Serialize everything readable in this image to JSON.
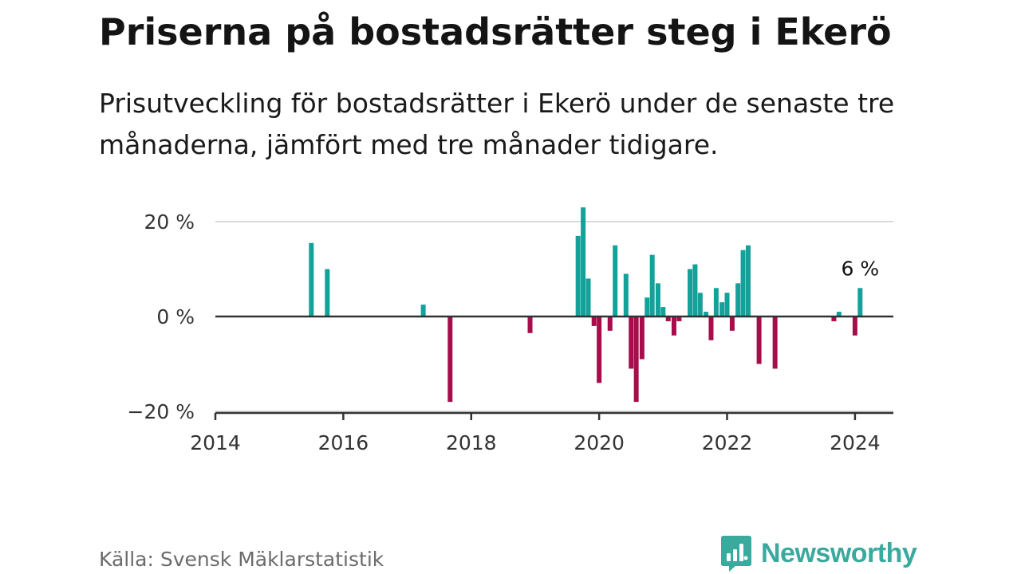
{
  "title": "Priserna på bostadsrätter steg i Ekerö",
  "subtitle": "Prisutveckling för bostadsrätter i Ekerö under de senaste tre månaderna, jämfört med tre månader tidigare.",
  "source": "Källa: Svensk Mäklarstatistik",
  "brand": "Newsworthy",
  "colors": {
    "positive": "#13a19a",
    "negative": "#a50e4b",
    "grid": "#d9d9d9",
    "axis": "#333333",
    "brand": "#3aa99e"
  },
  "chart_data": {
    "type": "bar",
    "title": "Priserna på bostadsrätter steg i Ekerö",
    "ylim": [
      -20,
      25
    ],
    "xlim": [
      2014,
      2024.6
    ],
    "yticks": [
      20,
      0,
      -20
    ],
    "ytick_labels": [
      "20 %",
      "0 %",
      "−20 %"
    ],
    "xticks": [
      2014,
      2016,
      2018,
      2020,
      2022,
      2024
    ],
    "xtick_labels": [
      "2014",
      "2016",
      "2018",
      "2020",
      "2022",
      "2024"
    ],
    "annotation": {
      "label": "6 %",
      "x": 2024.08,
      "y": 6
    },
    "x": [
      2015.5,
      2015.75,
      2017.25,
      2017.67,
      2018.92,
      2019.67,
      2019.75,
      2019.83,
      2019.92,
      2020.0,
      2020.17,
      2020.25,
      2020.42,
      2020.5,
      2020.58,
      2020.67,
      2020.75,
      2020.83,
      2020.92,
      2021.0,
      2021.08,
      2021.17,
      2021.25,
      2021.42,
      2021.5,
      2021.58,
      2021.67,
      2021.75,
      2021.83,
      2021.92,
      2022.0,
      2022.08,
      2022.17,
      2022.25,
      2022.33,
      2022.5,
      2022.75,
      2023.67,
      2023.75,
      2024.0,
      2024.08
    ],
    "values": [
      15.5,
      10,
      2.5,
      -18,
      -3.5,
      17,
      23,
      8,
      -2,
      -14,
      -3,
      15,
      9,
      -11,
      -18,
      -9,
      4,
      13,
      7,
      2,
      -1,
      -4,
      -1,
      10,
      11,
      5,
      1,
      -5,
      6,
      3,
      5,
      -3,
      7,
      14,
      15,
      -10,
      -11,
      -1,
      1,
      -4,
      6
    ]
  }
}
